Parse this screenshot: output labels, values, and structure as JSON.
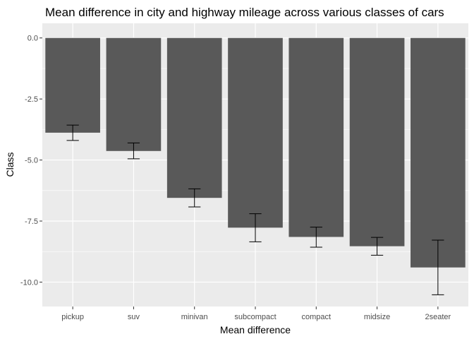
{
  "chart_data": {
    "type": "bar",
    "title": "Mean difference in city and highway mileage across various classes of cars",
    "xlabel": "Mean difference",
    "ylabel": "Class",
    "categories": [
      "pickup",
      "suv",
      "minivan",
      "subcompact",
      "compact",
      "midsize",
      "2seater"
    ],
    "values": [
      -3.88,
      -4.63,
      -6.55,
      -7.77,
      -8.15,
      -8.53,
      -9.4
    ],
    "error_bars": [
      {
        "low": -4.2,
        "high": -3.57
      },
      {
        "low": -4.95,
        "high": -4.3
      },
      {
        "low": -6.92,
        "high": -6.18
      },
      {
        "low": -8.35,
        "high": -7.2
      },
      {
        "low": -8.57,
        "high": -7.75
      },
      {
        "low": -8.9,
        "high": -8.17
      },
      {
        "low": -10.52,
        "high": -8.28
      }
    ],
    "ylim": [
      -11.0,
      0.6
    ],
    "yticks": [
      0.0,
      -2.5,
      -5.0,
      -7.5,
      -10.0
    ],
    "ytick_labels": [
      "0.0",
      "-2.5",
      "-5.0",
      "-7.5",
      "-10.0"
    ],
    "grid": true,
    "colors": {
      "panel_background": "#ebebeb",
      "grid_major": "#ffffff",
      "bar_fill": "#595959",
      "error_bar": "#000000"
    }
  }
}
